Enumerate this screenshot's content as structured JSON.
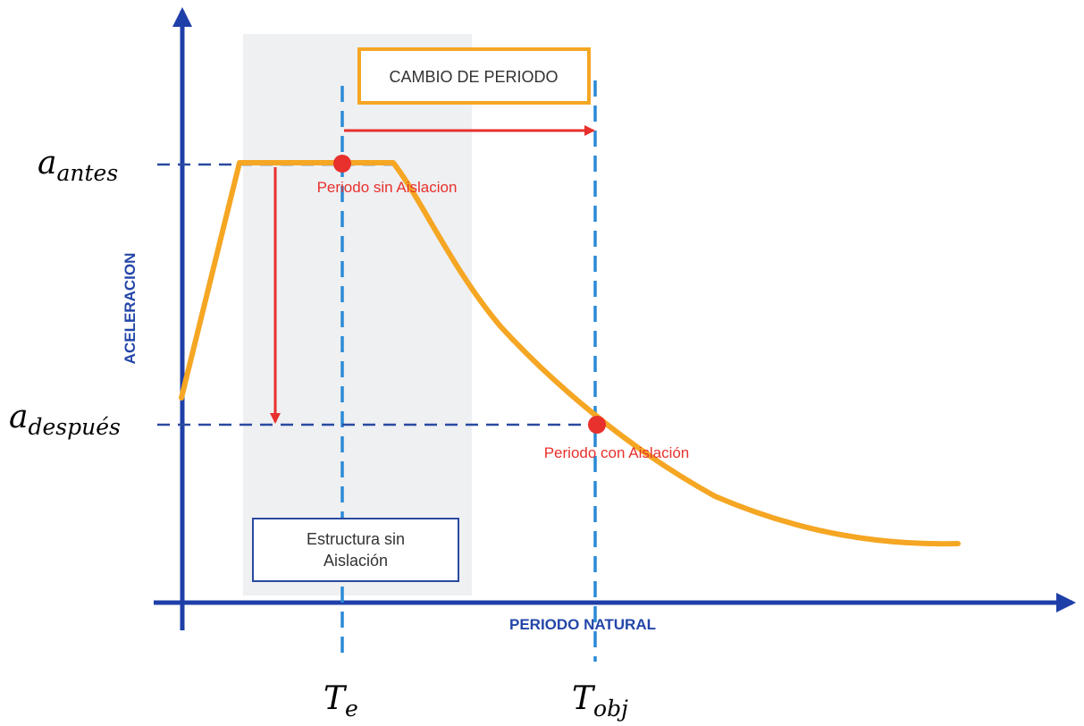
{
  "diagram": {
    "y_axis_title": "ACELERACION",
    "x_axis_title": "PERIODO NATURAL",
    "period_change_box": "CAMBIO DE PERIODO",
    "structure_box_line1": "Estructura sin",
    "structure_box_line2": "Aislación",
    "point_before_label": "Periodo sin Aislacion",
    "point_after_label": "Periodo con Aislación",
    "a_antes": {
      "base": "a",
      "sub": "antes"
    },
    "a_despues": {
      "base": "a",
      "sub": "después"
    },
    "t_e": {
      "base": "T",
      "sub": "e"
    },
    "t_obj": {
      "base": "T",
      "sub": "obj"
    },
    "colors": {
      "axis": "#1f3fa8",
      "curve": "#f5a623",
      "arrow": "#e8302c",
      "guide": "#2a4aa0",
      "period_line": "#2b8ad6",
      "shade": "#eef0f2"
    }
  }
}
